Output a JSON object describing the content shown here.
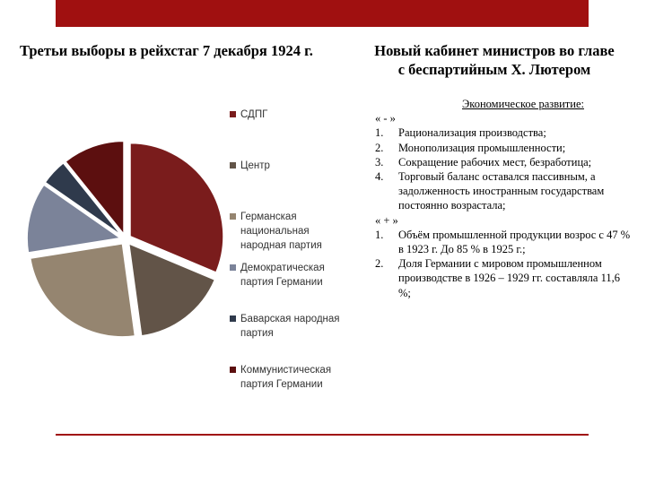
{
  "header": {
    "left_title": "Третьи выборы в рейхстаг 7 декабря 1924 г.",
    "right_title_line1": "Новый кабинет министров во главе",
    "right_title_line2": "с беспартийным Х. Лютером"
  },
  "colors": {
    "accent": "#a01010"
  },
  "chart_data": {
    "type": "pie",
    "title": "",
    "legend_position": "right",
    "labels": [
      "СДПГ",
      "Центр",
      "Германская национальная народная партия",
      "Демократическая партия Германии",
      "Баварская народная партия",
      "Коммунистическая партия Германии"
    ],
    "values": [
      131,
      69,
      103,
      51,
      19,
      45
    ],
    "colors": [
      "#7a1c1c",
      "#625448",
      "#958570",
      "#7b8399",
      "#2f3a4c",
      "#5c0f0f"
    ],
    "exploded": true
  },
  "econ": {
    "heading": "Экономическое развитие:",
    "minus_marker": "« - »",
    "minus_items": [
      {
        "num": "1.",
        "text": "Рационализация производства;"
      },
      {
        "num": "2.",
        "text": "Монополизация промышленности;"
      },
      {
        "num": "3.",
        "text": "Сокращение рабочих мест, безработица;"
      },
      {
        "num": "4.",
        "text": "Торговый баланс оставался пассивным, а задолженность иностранным государствам постоянно возрастала;"
      }
    ],
    "plus_marker": "« + »",
    "plus_items": [
      {
        "num": "1.",
        "text": "Объём промышленной продукции возрос с 47 % в 1923 г. До 85 % в 1925 г.;"
      },
      {
        "num": "2.",
        "text": "Доля Германии с мировом промышленном производстве в 1926 – 1929 гг. составляла 11,6 %;"
      }
    ]
  }
}
